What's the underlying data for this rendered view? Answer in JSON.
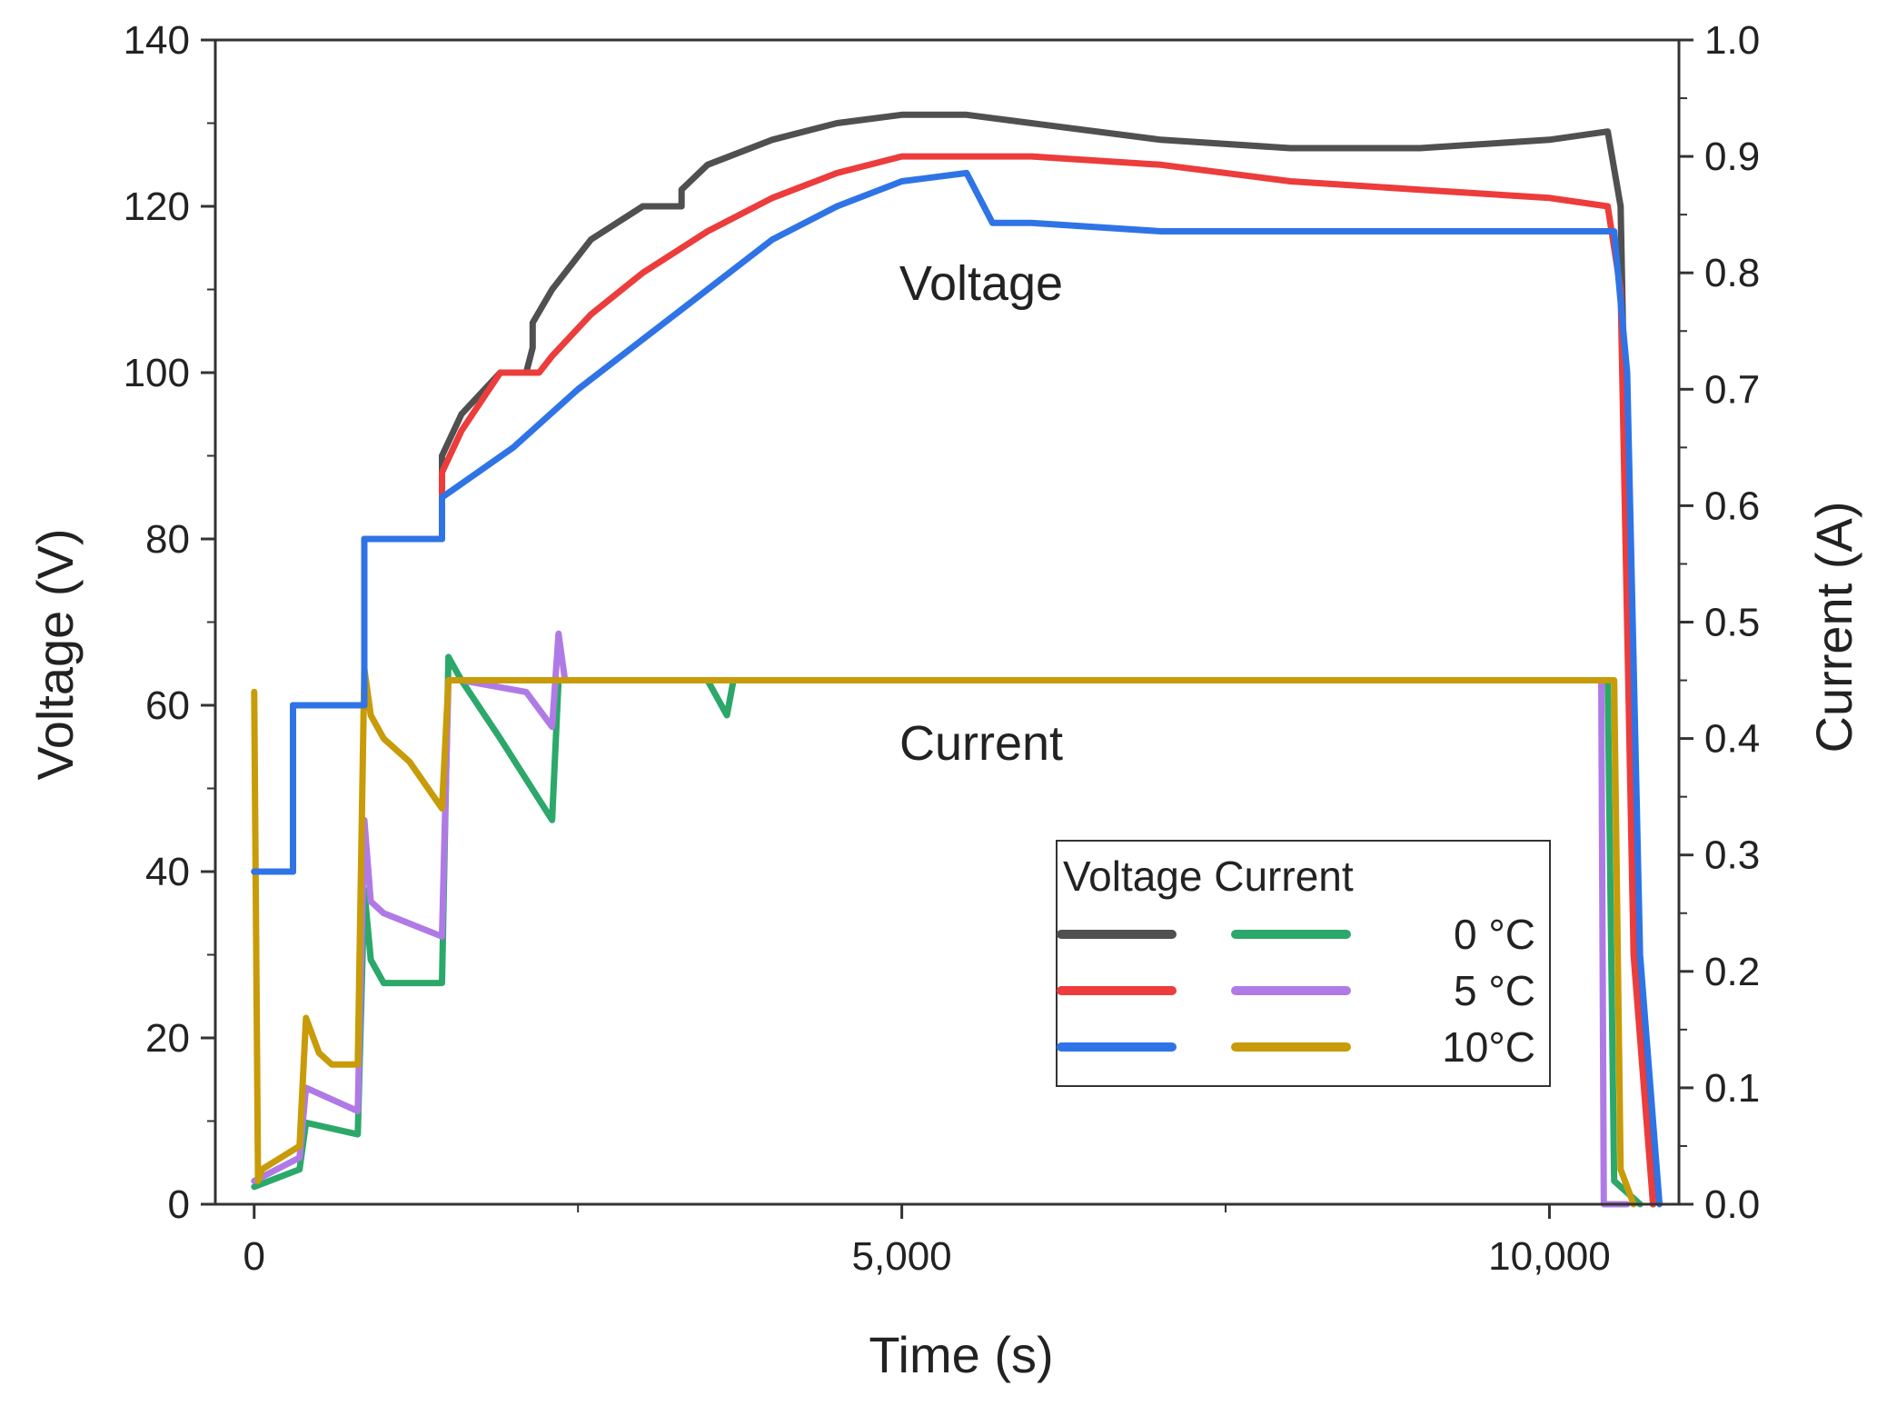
{
  "chart_data": {
    "type": "line",
    "xlabel": "Time (s)",
    "ylabel": "Voltage (V)",
    "y2label": "Current (A)",
    "xlim": [
      -300,
      11000
    ],
    "ylim": [
      0,
      140
    ],
    "y2lim": [
      0,
      1.0
    ],
    "x_ticks": [
      0,
      5000,
      10000
    ],
    "x_tick_labels": [
      "0",
      "5,000",
      "10,000"
    ],
    "y_ticks": [
      0,
      20,
      40,
      60,
      80,
      100,
      120,
      140
    ],
    "y_tick_labels": [
      "0",
      "20",
      "40",
      "60",
      "80",
      "100",
      "120",
      "140"
    ],
    "y2_ticks": [
      0,
      0.1,
      0.2,
      0.3,
      0.4,
      0.5,
      0.6,
      0.7,
      0.8,
      0.9,
      1.0
    ],
    "y2_tick_labels": [
      "0.0",
      "0.1",
      "0.2",
      "0.3",
      "0.4",
      "0.5",
      "0.6",
      "0.7",
      "0.8",
      "0.9",
      "1.0"
    ],
    "annotations": [
      "Voltage",
      "Current"
    ],
    "legend": {
      "header": "Voltage Current",
      "position": "lower-right",
      "entries": [
        {
          "label": "0  °C",
          "voltage_color": "#505050",
          "current_color": "#2ca86a"
        },
        {
          "label": "5  °C",
          "voltage_color": "#ec3c3c",
          "current_color": "#b07ae6"
        },
        {
          "label": "10°C",
          "voltage_color": "#2f74e6",
          "current_color": "#c89b08"
        }
      ]
    },
    "series": [
      {
        "name": "Voltage 0 °C",
        "axis": "left",
        "color": "#505050",
        "x": [
          0,
          300,
          300,
          850,
          850,
          1450,
          1450,
          1600,
          1900,
          2100,
          2150,
          2150,
          2300,
          2600,
          3000,
          3300,
          3300,
          3500,
          4000,
          4500,
          5000,
          5500,
          6000,
          7000,
          8000,
          9000,
          10000,
          10450,
          10550,
          10650,
          10800
        ],
        "y": [
          40,
          40,
          60,
          60,
          80,
          80,
          90,
          95,
          100,
          100,
          103,
          106,
          110,
          116,
          120,
          120,
          122,
          125,
          128,
          130,
          131,
          131,
          130,
          128,
          127,
          127,
          128,
          129,
          120,
          40,
          0
        ]
      },
      {
        "name": "Voltage 5 °C",
        "axis": "left",
        "color": "#ec3c3c",
        "x": [
          0,
          300,
          300,
          850,
          850,
          1450,
          1450,
          1600,
          1900,
          2200,
          2300,
          2600,
          3000,
          3500,
          4000,
          4500,
          5000,
          5500,
          6000,
          7000,
          8000,
          9000,
          10000,
          10450,
          10550,
          10650,
          10800
        ],
        "y": [
          40,
          40,
          60,
          60,
          80,
          80,
          88,
          93,
          100,
          100,
          102,
          107,
          112,
          117,
          121,
          124,
          126,
          126,
          126,
          125,
          123,
          122,
          121,
          120,
          110,
          30,
          0
        ]
      },
      {
        "name": "Voltage 10 °C",
        "axis": "left",
        "color": "#2f74e6",
        "x": [
          0,
          300,
          300,
          850,
          850,
          1450,
          1450,
          2000,
          2500,
          3000,
          3500,
          4000,
          4500,
          5000,
          5500,
          5700,
          6000,
          7000,
          8000,
          9000,
          10000,
          10500,
          10600,
          10700,
          10850
        ],
        "y": [
          40,
          40,
          60,
          60,
          80,
          80,
          85,
          91,
          98,
          104,
          110,
          116,
          120,
          123,
          124,
          118,
          118,
          117,
          117,
          117,
          117,
          117,
          100,
          30,
          0
        ]
      },
      {
        "name": "Current 0 °C",
        "axis": "right",
        "color": "#2ca86a",
        "x": [
          0,
          350,
          400,
          800,
          850,
          900,
          1000,
          1450,
          1500,
          1600,
          1900,
          2300,
          2350,
          2400,
          3500,
          3600,
          3650,
          3700,
          10450,
          10500,
          10700
        ],
        "y": [
          0.015,
          0.03,
          0.07,
          0.06,
          0.27,
          0.21,
          0.19,
          0.19,
          0.47,
          0.45,
          0.4,
          0.33,
          0.45,
          0.45,
          0.45,
          0.43,
          0.42,
          0.45,
          0.45,
          0.02,
          0.0
        ]
      },
      {
        "name": "Current 5 °C",
        "axis": "right",
        "color": "#b07ae6",
        "x": [
          0,
          350,
          400,
          800,
          850,
          900,
          1000,
          1450,
          1500,
          1600,
          2100,
          2300,
          2350,
          2400,
          5000,
          9000,
          10400,
          10420,
          10600
        ],
        "y": [
          0.02,
          0.04,
          0.1,
          0.08,
          0.33,
          0.26,
          0.25,
          0.23,
          0.45,
          0.45,
          0.44,
          0.41,
          0.49,
          0.45,
          0.45,
          0.45,
          0.45,
          0.0,
          0.0
        ]
      },
      {
        "name": "Current 10 °C",
        "axis": "right",
        "color": "#c89b08",
        "x": [
          0,
          30,
          60,
          350,
          400,
          500,
          600,
          800,
          850,
          900,
          1000,
          1200,
          1450,
          1500,
          1600,
          5000,
          9000,
          10500,
          10550,
          10650
        ],
        "y": [
          0.44,
          0.02,
          0.03,
          0.05,
          0.16,
          0.13,
          0.12,
          0.12,
          0.46,
          0.42,
          0.4,
          0.38,
          0.34,
          0.45,
          0.45,
          0.45,
          0.45,
          0.45,
          0.03,
          0.0
        ]
      }
    ]
  }
}
